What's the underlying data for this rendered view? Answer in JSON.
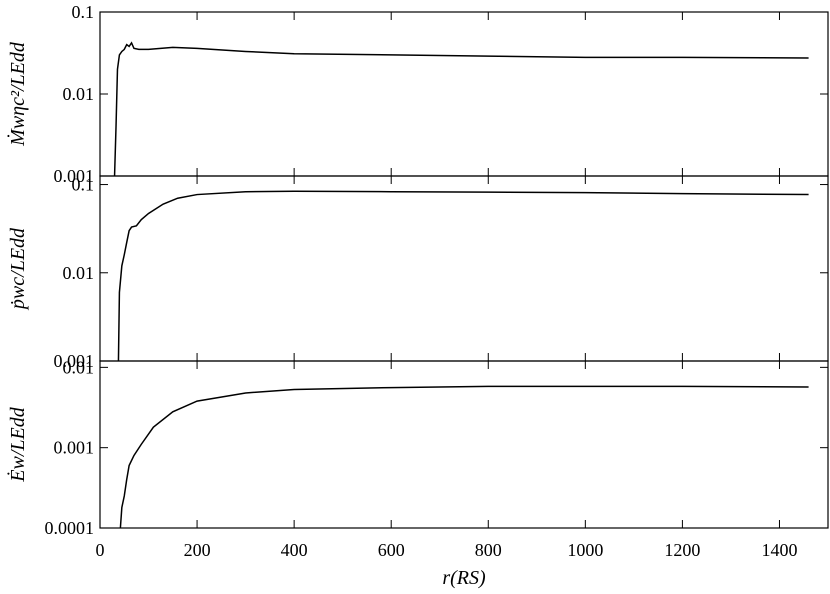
{
  "chart_data": [
    {
      "type": "line",
      "y_label": "Ṁwηc²/LEdd",
      "log_y": true,
      "color": "#000000",
      "x": [
        30,
        33,
        36,
        40,
        45,
        50,
        55,
        60,
        65,
        70,
        80,
        100,
        150,
        200,
        300,
        400,
        600,
        800,
        1000,
        1200,
        1460
      ],
      "values": [
        0.001,
        0.004,
        0.02,
        0.03,
        0.033,
        0.035,
        0.04,
        0.038,
        0.042,
        0.036,
        0.035,
        0.035,
        0.037,
        0.036,
        0.033,
        0.031,
        0.03,
        0.029,
        0.028,
        0.028,
        0.0275
      ],
      "xlim": [
        0,
        1500
      ],
      "xticks": [
        0,
        200,
        400,
        600,
        800,
        1000,
        1200,
        1400
      ],
      "ylim": [
        0.001,
        0.1
      ],
      "yticks": [
        0.001,
        0.01,
        0.1
      ]
    },
    {
      "type": "line",
      "y_label": "ṗwc/LEdd",
      "log_y": true,
      "color": "#000000",
      "x": [
        38,
        40,
        45,
        50,
        55,
        60,
        65,
        75,
        85,
        100,
        130,
        160,
        200,
        300,
        400,
        600,
        800,
        1000,
        1200,
        1460
      ],
      "values": [
        0.001,
        0.006,
        0.012,
        0.016,
        0.022,
        0.03,
        0.033,
        0.034,
        0.04,
        0.047,
        0.06,
        0.07,
        0.077,
        0.083,
        0.084,
        0.083,
        0.082,
        0.081,
        0.079,
        0.077
      ],
      "xlim": [
        0,
        1500
      ],
      "xticks": [
        0,
        200,
        400,
        600,
        800,
        1000,
        1200,
        1400
      ],
      "ylim": [
        0.001,
        0.125
      ],
      "yticks": [
        0.001,
        0.01,
        0.1
      ]
    },
    {
      "type": "line",
      "y_label": "Ėw/LEdd",
      "x_label": "r(RS)",
      "log_y": true,
      "color": "#000000",
      "x": [
        42,
        45,
        50,
        55,
        60,
        70,
        85,
        110,
        150,
        200,
        300,
        400,
        600,
        800,
        1000,
        1200,
        1460
      ],
      "values": [
        0.0001,
        0.00018,
        0.00025,
        0.0004,
        0.0006,
        0.0008,
        0.0011,
        0.0018,
        0.0028,
        0.0038,
        0.0048,
        0.0053,
        0.0056,
        0.0058,
        0.0058,
        0.0058,
        0.0057
      ],
      "xlim": [
        0,
        1500
      ],
      "xticks": [
        0,
        200,
        400,
        600,
        800,
        1000,
        1200,
        1400
      ],
      "ylim": [
        0.0001,
        0.012
      ],
      "yticks": [
        0.0001,
        0.001,
        0.01
      ]
    }
  ]
}
